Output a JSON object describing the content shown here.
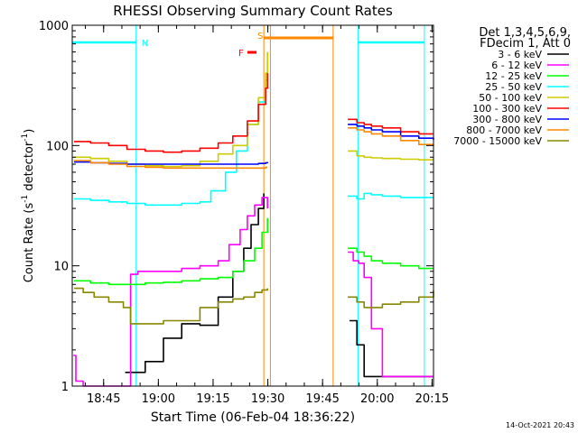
{
  "title": "RHESSI Observing Summary Count Rates",
  "xlabel": "Start Time (06-Feb-04 18:36:22)",
  "ylabel_parts": [
    "Count Rate (s",
    "-1",
    " detector",
    "-1",
    ")"
  ],
  "legend": {
    "header1": "Det 1,3,4,5,6,9,",
    "header2": "FDecim 1, Att 0",
    "entries": [
      {
        "label": "3 - 6 keV",
        "color": "#000000"
      },
      {
        "label": "6 - 12 keV",
        "color": "#ff00ff"
      },
      {
        "label": "12 - 25 keV",
        "color": "#00ff00"
      },
      {
        "label": "25 - 50 keV",
        "color": "#00ffff"
      },
      {
        "label": "50 - 100 keV",
        "color": "#cccc00"
      },
      {
        "label": "100 - 300 keV",
        "color": "#ff0000"
      },
      {
        "label": "300 - 800 keV",
        "color": "#0000ff"
      },
      {
        "label": "800 - 7000 keV",
        "color": "#ff8800"
      },
      {
        "label": "7000 - 15000 keV",
        "color": "#888800"
      }
    ]
  },
  "timestamp": "14-Oct-2021 20:43",
  "flag_labels": {
    "night": "N",
    "flare": "F",
    "saa": "S"
  },
  "chart_data": {
    "type": "line",
    "title": "RHESSI Observing Summary Count Rates",
    "xlabel": "Start Time (06-Feb-04 18:36:22)",
    "ylabel": "Count Rate (s-1 detector-1)",
    "x_unit": "minutes after 18:36:22",
    "xlim": [
      0,
      99
    ],
    "ylim": [
      1,
      1000
    ],
    "yscale": "log",
    "x_ticks": [
      {
        "label": "18:45",
        "value": 8.6
      },
      {
        "label": "19:00",
        "value": 23.6
      },
      {
        "label": "19:15",
        "value": 38.6
      },
      {
        "label": "19:30",
        "value": 53.6
      },
      {
        "label": "19:45",
        "value": 68.6
      },
      {
        "label": "20:00",
        "value": 83.6
      },
      {
        "label": "20:15",
        "value": 98.6
      }
    ],
    "y_ticks": [
      {
        "label": "1",
        "value": 1
      },
      {
        "label": "10",
        "value": 10
      },
      {
        "label": "100",
        "value": 100
      },
      {
        "label": "1000",
        "value": 1000
      }
    ],
    "night_intervals": [
      [
        0,
        17.5
      ],
      [
        78.3,
        96.5
      ]
    ],
    "flare_intervals": [
      [
        48,
        50.5
      ]
    ],
    "saa_intervals": [
      [
        52.5,
        71.5
      ]
    ],
    "vlines_cyan": [
      17.5,
      78.3,
      96.5
    ],
    "vlines_orange": [
      52.5,
      54.3,
      71.5
    ],
    "gap": [
      54.3,
      75.2
    ],
    "series": [
      {
        "name": "3 - 6 keV",
        "color": "#000000",
        "x": [
          14.5,
          20,
          25,
          30,
          35,
          40,
          44,
          47,
          49,
          51,
          52.5,
          54,
          76,
          78,
          80,
          85,
          90,
          95,
          99
        ],
        "y": [
          1.3,
          1.6,
          2.5,
          3.3,
          3.2,
          5.5,
          9,
          14,
          22,
          30,
          40,
          null,
          3.5,
          2.2,
          1.2,
          1.2,
          1.2,
          1.2,
          1.2
        ]
      },
      {
        "name": "6 - 12 keV",
        "color": "#ff00ff",
        "x": [
          0.3,
          1,
          3,
          5,
          8,
          10,
          12,
          14,
          16,
          18,
          20,
          22,
          25,
          30,
          35,
          40,
          43,
          46,
          48,
          50,
          52,
          53.5,
          54,
          75.5,
          77,
          78.5,
          80,
          82,
          85,
          90,
          95,
          99
        ],
        "y": [
          1.8,
          1.1,
          1,
          1,
          1,
          1,
          1,
          1,
          8.5,
          9,
          9,
          9,
          9,
          9.5,
          10,
          11,
          15,
          20,
          26,
          32,
          37,
          30,
          null,
          13,
          11,
          10.5,
          8,
          3,
          1.2,
          1.2,
          1.2,
          1.2
        ]
      },
      {
        "name": "12 - 25 keV",
        "color": "#00ff00",
        "x": [
          0.5,
          5,
          10,
          15,
          20,
          25,
          30,
          35,
          40,
          44,
          47,
          50,
          52,
          53.5,
          54,
          75.5,
          78,
          80,
          82,
          85,
          90,
          95,
          99
        ],
        "y": [
          7.5,
          7.2,
          7,
          7,
          7.2,
          7.3,
          7.5,
          7.8,
          8,
          9,
          11,
          14,
          19,
          25,
          null,
          14,
          13,
          12,
          11,
          10.5,
          10,
          9.5,
          9.5
        ]
      },
      {
        "name": "25 - 50 keV",
        "color": "#00ffff",
        "x": [
          0.5,
          5,
          10,
          15,
          20,
          25,
          30,
          35,
          38,
          42,
          45,
          48,
          51,
          53,
          53.5,
          54,
          75.5,
          78,
          80,
          82,
          85,
          90,
          95,
          99
        ],
        "y": [
          36,
          35,
          34,
          33,
          32,
          32,
          33,
          34,
          42,
          60,
          90,
          150,
          230,
          350,
          500,
          null,
          38,
          36,
          40,
          39,
          38,
          37,
          37,
          37
        ]
      },
      {
        "name": "50 - 100 keV",
        "color": "#cccc00",
        "x": [
          0.5,
          5,
          10,
          15,
          20,
          25,
          30,
          35,
          40,
          44,
          48,
          51,
          53,
          53.5,
          54,
          75.5,
          78,
          80,
          82,
          85,
          90,
          95,
          99
        ],
        "y": [
          80,
          78,
          74,
          70,
          68,
          67,
          68,
          74,
          85,
          100,
          150,
          250,
          400,
          600,
          null,
          90,
          82,
          80,
          79,
          78,
          77,
          76,
          76
        ]
      },
      {
        "name": "100 - 300 keV",
        "color": "#ff0000",
        "x": [
          0.5,
          5,
          10,
          15,
          20,
          25,
          30,
          35,
          40,
          44,
          48,
          51,
          53,
          53.5,
          54,
          75.5,
          78,
          80,
          82,
          85,
          90,
          95,
          99
        ],
        "y": [
          108,
          105,
          100,
          93,
          90,
          88,
          90,
          95,
          105,
          120,
          160,
          220,
          300,
          400,
          null,
          165,
          155,
          150,
          145,
          140,
          130,
          125,
          125
        ]
      },
      {
        "name": "300 - 800 keV",
        "color": "#0000ff",
        "x": [
          0.5,
          5,
          10,
          15,
          20,
          25,
          30,
          35,
          40,
          44,
          48,
          51,
          53,
          53.5,
          54,
          75.5,
          78,
          80,
          82,
          85,
          90,
          95,
          99
        ],
        "y": [
          73,
          72,
          71,
          70,
          70,
          70,
          70,
          70,
          70,
          70,
          70,
          71,
          72,
          73,
          null,
          150,
          145,
          140,
          135,
          130,
          120,
          115,
          112
        ]
      },
      {
        "name": "800 - 7000 keV",
        "color": "#ff8800",
        "x": [
          0.5,
          5,
          10,
          15,
          20,
          25,
          30,
          35,
          40,
          44,
          48,
          51,
          53,
          53.5,
          54,
          75.5,
          78,
          80,
          82,
          85,
          90,
          95,
          99
        ],
        "y": [
          75,
          72,
          70,
          67,
          66,
          65,
          65,
          65,
          65,
          65,
          65,
          65,
          66,
          66,
          null,
          140,
          135,
          130,
          125,
          120,
          110,
          102,
          100
        ]
      },
      {
        "name": "7000 - 15000 keV",
        "color": "#888800",
        "x": [
          0.5,
          3,
          6,
          10,
          14,
          16,
          20,
          25,
          30,
          35,
          40,
          44,
          47,
          50,
          52,
          53.5,
          54,
          75.5,
          78,
          80,
          85,
          90,
          95,
          99
        ],
        "y": [
          6.5,
          6,
          5.5,
          5,
          4.5,
          3.3,
          3.3,
          3.5,
          3.5,
          4.5,
          5,
          5.3,
          5.5,
          6,
          6.3,
          6.5,
          null,
          5.5,
          5,
          4.5,
          4.8,
          5,
          5.5,
          6.2
        ]
      }
    ]
  }
}
